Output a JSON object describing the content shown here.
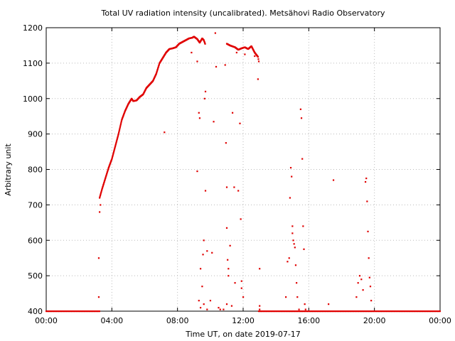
{
  "chart_data": {
    "type": "scatter",
    "title": "Total UV radiation intensity (uncalibrated). Metsähovi Radio Observatory",
    "xlabel": "Time UT, on date 2019-07-17",
    "ylabel": "Arbitrary unit",
    "xlim": [
      0,
      24
    ],
    "ylim": [
      400,
      1200
    ],
    "x_ticks": [
      0,
      4,
      8,
      12,
      16,
      20,
      24
    ],
    "x_tick_labels": [
      "00:00",
      "04:00",
      "08:00",
      "12:00",
      "16:00",
      "20:00",
      "00:00"
    ],
    "y_ticks": [
      400,
      500,
      600,
      700,
      800,
      900,
      1000,
      1100,
      1200
    ],
    "y_tick_labels": [
      "400",
      "500",
      "600",
      "700",
      "800",
      "900",
      "1000",
      "1100",
      "1200"
    ],
    "grid": true,
    "series": [
      {
        "color": "#e00000",
        "baseline_value": 400,
        "baseline_x_ranges": [
          [
            0,
            3.25
          ],
          [
            12.95,
            24
          ]
        ],
        "main_curve": [
          [
            3.25,
            720
          ],
          [
            3.4,
            745
          ],
          [
            3.6,
            775
          ],
          [
            3.8,
            805
          ],
          [
            4.0,
            830
          ],
          [
            4.2,
            865
          ],
          [
            4.4,
            900
          ],
          [
            4.6,
            940
          ],
          [
            4.8,
            965
          ],
          [
            5.0,
            985
          ],
          [
            5.2,
            1000
          ],
          [
            5.3,
            993
          ],
          [
            5.5,
            995
          ],
          [
            5.7,
            1005
          ],
          [
            5.9,
            1012
          ],
          [
            6.1,
            1030
          ],
          [
            6.3,
            1040
          ],
          [
            6.5,
            1050
          ],
          [
            6.7,
            1070
          ],
          [
            6.9,
            1100
          ],
          [
            7.1,
            1115
          ],
          [
            7.3,
            1130
          ],
          [
            7.5,
            1140
          ],
          [
            7.7,
            1142
          ],
          [
            7.9,
            1145
          ],
          [
            8.1,
            1155
          ],
          [
            8.3,
            1160
          ],
          [
            8.5,
            1165
          ],
          [
            8.7,
            1170
          ],
          [
            8.9,
            1172
          ],
          [
            9.0,
            1175
          ],
          [
            9.2,
            1168
          ],
          [
            9.35,
            1158
          ],
          [
            9.5,
            1170
          ],
          [
            9.6,
            1165
          ],
          [
            9.7,
            1152
          ],
          [
            11.0,
            1155
          ],
          [
            11.2,
            1150
          ],
          [
            11.5,
            1145
          ],
          [
            11.7,
            1138
          ],
          [
            11.9,
            1142
          ],
          [
            12.1,
            1145
          ],
          [
            12.3,
            1140
          ],
          [
            12.5,
            1148
          ],
          [
            12.7,
            1130
          ],
          [
            12.9,
            1118
          ],
          [
            12.95,
            1105
          ]
        ],
        "scattered_points": [
          [
            3.2,
            550
          ],
          [
            3.2,
            440
          ],
          [
            3.25,
            680
          ],
          [
            3.3,
            700
          ],
          [
            7.2,
            905
          ],
          [
            8.85,
            1130
          ],
          [
            9.2,
            1105
          ],
          [
            9.2,
            795
          ],
          [
            9.3,
            960
          ],
          [
            9.35,
            945
          ],
          [
            9.4,
            520
          ],
          [
            9.5,
            470
          ],
          [
            9.6,
            420
          ],
          [
            9.7,
            1020
          ],
          [
            9.65,
            1000
          ],
          [
            9.6,
            600
          ],
          [
            9.55,
            560
          ],
          [
            9.7,
            740
          ],
          [
            9.8,
            570
          ],
          [
            9.8,
            405
          ],
          [
            9.3,
            430
          ],
          [
            9.4,
            410
          ],
          [
            10.0,
            430
          ],
          [
            10.1,
            565
          ],
          [
            10.2,
            935
          ],
          [
            10.3,
            1185
          ],
          [
            10.35,
            1090
          ],
          [
            10.5,
            410
          ],
          [
            10.6,
            405
          ],
          [
            10.8,
            405
          ],
          [
            10.9,
            1095
          ],
          [
            10.95,
            875
          ],
          [
            11.0,
            750
          ],
          [
            11.0,
            635
          ],
          [
            11.05,
            545
          ],
          [
            11.1,
            520
          ],
          [
            11.1,
            500
          ],
          [
            11.0,
            420
          ],
          [
            11.2,
            585
          ],
          [
            11.3,
            415
          ],
          [
            11.35,
            960
          ],
          [
            11.45,
            750
          ],
          [
            11.5,
            480
          ],
          [
            11.6,
            1130
          ],
          [
            11.7,
            740
          ],
          [
            11.8,
            930
          ],
          [
            11.85,
            660
          ],
          [
            11.9,
            485
          ],
          [
            11.9,
            465
          ],
          [
            12.0,
            440
          ],
          [
            12.1,
            1125
          ],
          [
            12.7,
            1120
          ],
          [
            12.9,
            1055
          ],
          [
            13.0,
            520
          ],
          [
            13.0,
            415
          ],
          [
            13.0,
            405
          ],
          [
            14.6,
            440
          ],
          [
            14.7,
            540
          ],
          [
            14.8,
            550
          ],
          [
            14.85,
            720
          ],
          [
            14.9,
            805
          ],
          [
            14.95,
            780
          ],
          [
            15.0,
            640
          ],
          [
            15.0,
            620
          ],
          [
            15.05,
            600
          ],
          [
            15.1,
            590
          ],
          [
            15.15,
            580
          ],
          [
            15.2,
            530
          ],
          [
            15.25,
            480
          ],
          [
            15.3,
            440
          ],
          [
            15.4,
            405
          ],
          [
            15.5,
            970
          ],
          [
            15.55,
            945
          ],
          [
            15.6,
            830
          ],
          [
            15.65,
            640
          ],
          [
            15.7,
            575
          ],
          [
            15.75,
            420
          ],
          [
            15.8,
            405
          ],
          [
            17.2,
            420
          ],
          [
            17.5,
            770
          ],
          [
            18.9,
            440
          ],
          [
            19.0,
            480
          ],
          [
            19.1,
            500
          ],
          [
            19.2,
            490
          ],
          [
            19.3,
            460
          ],
          [
            19.45,
            765
          ],
          [
            19.5,
            775
          ],
          [
            19.55,
            710
          ],
          [
            19.6,
            625
          ],
          [
            19.65,
            550
          ],
          [
            19.7,
            495
          ],
          [
            19.75,
            470
          ],
          [
            19.8,
            430
          ]
        ]
      }
    ]
  }
}
